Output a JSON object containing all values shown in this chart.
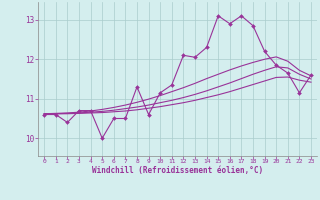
{
  "xlabel": "Windchill (Refroidissement éolien,°C)",
  "background_color": "#d4eeee",
  "grid_color": "#aacccc",
  "line_color": "#993399",
  "xlim": [
    -0.5,
    23.5
  ],
  "ylim": [
    9.55,
    13.45
  ],
  "yticks": [
    10,
    11,
    12,
    13
  ],
  "xticks": [
    0,
    1,
    2,
    3,
    4,
    5,
    6,
    7,
    8,
    9,
    10,
    11,
    12,
    13,
    14,
    15,
    16,
    17,
    18,
    19,
    20,
    21,
    22,
    23
  ],
  "series1_x": [
    0,
    1,
    2,
    3,
    4,
    5,
    6,
    7,
    8,
    9,
    10,
    11,
    12,
    13,
    14,
    15,
    16,
    17,
    18,
    19,
    20,
    21,
    22,
    23
  ],
  "series1_y": [
    10.6,
    10.6,
    10.4,
    10.7,
    10.7,
    10.0,
    10.5,
    10.5,
    11.3,
    10.6,
    11.15,
    11.35,
    12.1,
    12.05,
    12.3,
    13.1,
    12.9,
    13.1,
    12.85,
    12.2,
    11.85,
    11.65,
    11.15,
    11.6
  ],
  "series2_x": [
    0,
    1,
    2,
    3,
    4,
    5,
    6,
    7,
    8,
    9,
    10,
    11,
    12,
    13,
    14,
    15,
    16,
    17,
    18,
    19,
    20,
    21,
    22,
    23
  ],
  "series2_y": [
    10.62,
    10.63,
    10.64,
    10.66,
    10.69,
    10.73,
    10.78,
    10.84,
    10.91,
    10.99,
    11.08,
    11.18,
    11.28,
    11.39,
    11.51,
    11.62,
    11.73,
    11.83,
    11.92,
    12.0,
    12.06,
    11.95,
    11.72,
    11.58
  ],
  "series3_x": [
    0,
    1,
    2,
    3,
    4,
    5,
    6,
    7,
    8,
    9,
    10,
    11,
    12,
    13,
    14,
    15,
    16,
    17,
    18,
    19,
    20,
    21,
    22,
    23
  ],
  "series3_y": [
    10.62,
    10.62,
    10.63,
    10.64,
    10.66,
    10.68,
    10.71,
    10.75,
    10.79,
    10.84,
    10.9,
    10.96,
    11.03,
    11.11,
    11.2,
    11.3,
    11.4,
    11.51,
    11.62,
    11.72,
    11.81,
    11.78,
    11.62,
    11.5
  ],
  "series4_x": [
    0,
    1,
    2,
    3,
    4,
    5,
    6,
    7,
    8,
    9,
    10,
    11,
    12,
    13,
    14,
    15,
    16,
    17,
    18,
    19,
    20,
    21,
    22,
    23
  ],
  "series4_y": [
    10.62,
    10.62,
    10.62,
    10.63,
    10.64,
    10.65,
    10.67,
    10.69,
    10.72,
    10.76,
    10.8,
    10.85,
    10.9,
    10.96,
    11.03,
    11.1,
    11.18,
    11.27,
    11.36,
    11.45,
    11.54,
    11.55,
    11.47,
    11.42
  ]
}
